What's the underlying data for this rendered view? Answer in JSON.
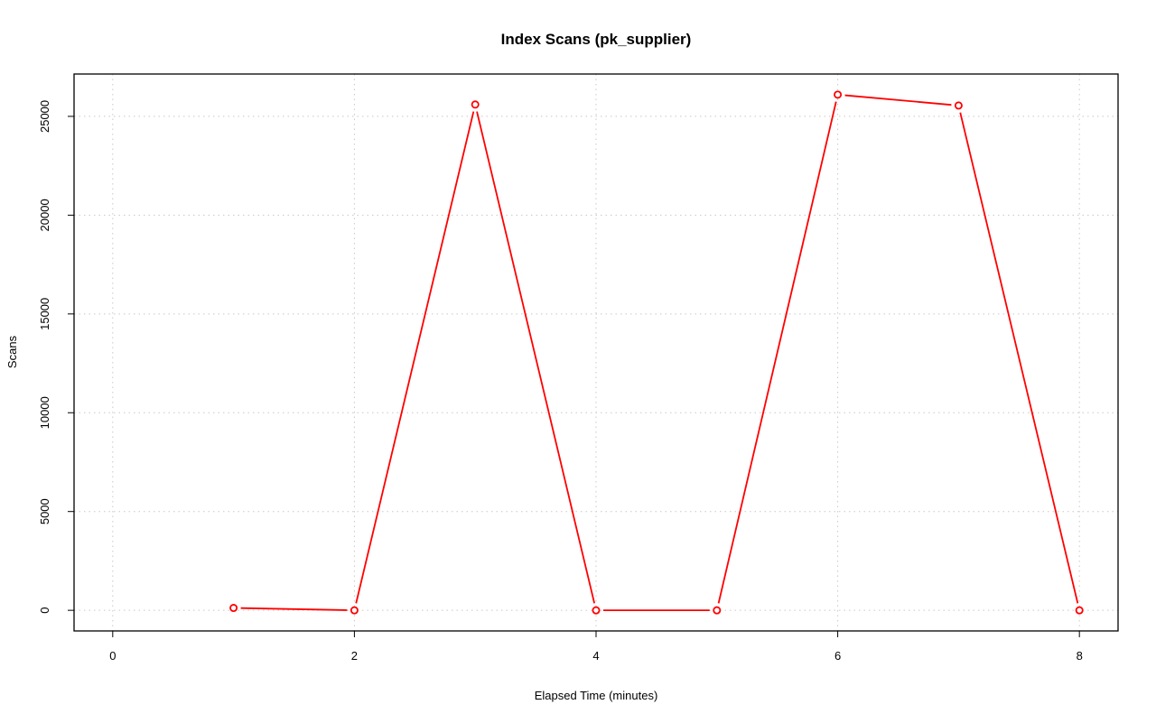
{
  "chart_data": {
    "type": "line",
    "title": "Index Scans (pk_supplier)",
    "xlabel": "Elapsed Time (minutes)",
    "ylabel": "Scans",
    "xlim": [
      -0.32,
      8.32
    ],
    "ylim": [
      -1044,
      27144
    ],
    "x_ticks": [
      0,
      2,
      4,
      6,
      8
    ],
    "y_ticks": [
      0,
      5000,
      10000,
      15000,
      20000,
      25000
    ],
    "grid": true,
    "series": [
      {
        "color": "#ff0000",
        "x": [
          1,
          2,
          3,
          4,
          5,
          6,
          7,
          8
        ],
        "values": [
          120,
          0,
          25600,
          0,
          0,
          26100,
          25550,
          0
        ]
      }
    ]
  }
}
